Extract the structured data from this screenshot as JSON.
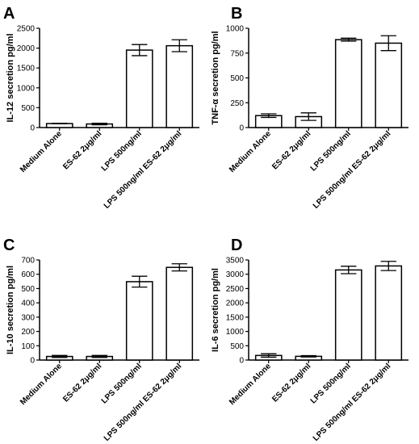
{
  "figure": {
    "panels": [
      "A",
      "B",
      "C",
      "D"
    ]
  },
  "chart_data": [
    {
      "type": "bar",
      "panel": "A",
      "ylabel": "IL-12 secretion pg/ml",
      "ylim": [
        0,
        2500
      ],
      "yticks": [
        0,
        500,
        1000,
        1500,
        2000,
        2500
      ],
      "categories": [
        "Medium Alone",
        "ES-62 2μg/ml",
        "LPS 500ng/ml",
        "LPS 500ng/ml ES-62 2μg/ml"
      ],
      "values": [
        100,
        90,
        1950,
        2060
      ],
      "errors": [
        5,
        20,
        140,
        150
      ]
    },
    {
      "type": "bar",
      "panel": "B",
      "ylabel": "TNF-α secretion pg/ml",
      "ylim": [
        0,
        1000
      ],
      "yticks": [
        0,
        250,
        500,
        750,
        1000
      ],
      "categories": [
        "Medium Alone",
        "ES-62 2μg/ml",
        "LPS 500ng/ml",
        "LPS 500ng/ml ES-62 2μg/ml"
      ],
      "values": [
        120,
        110,
        885,
        850
      ],
      "errors": [
        18,
        38,
        15,
        75
      ]
    },
    {
      "type": "bar",
      "panel": "C",
      "ylabel": "IL-10 secretion pg/ml",
      "ylim": [
        0,
        700
      ],
      "yticks": [
        0,
        100,
        200,
        300,
        400,
        500,
        600,
        700
      ],
      "categories": [
        "Medium Alone",
        "ES-62 2μg/ml",
        "LPS 500ng/ml",
        "LPS 500ng/ml ES-62 2μg/ml"
      ],
      "values": [
        25,
        25,
        548,
        648
      ],
      "errors": [
        7,
        7,
        38,
        25
      ]
    },
    {
      "type": "bar",
      "panel": "D",
      "ylabel": "IL-6 secretion pg/ml",
      "ylim": [
        0,
        3500
      ],
      "yticks": [
        0,
        500,
        1000,
        1500,
        2000,
        2500,
        3000,
        3500
      ],
      "categories": [
        "Medium Alone",
        "ES-62 2μg/ml",
        "LPS 500ng/ml",
        "LPS 500ng/ml ES-62 2μg/ml"
      ],
      "values": [
        160,
        130,
        3150,
        3290
      ],
      "errors": [
        60,
        25,
        130,
        160
      ]
    }
  ]
}
